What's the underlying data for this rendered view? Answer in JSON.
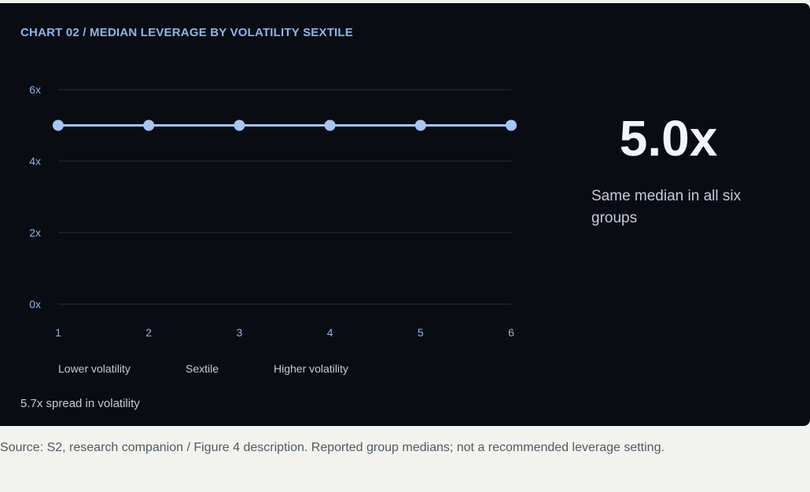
{
  "panel": {
    "title": "CHART 02 / MEDIAN LEVERAGE BY VOLATILITY SEXTILE",
    "headline_value": "5.0x",
    "headline_caption": "Same median in all six groups",
    "x_note_low": "Lower volatility",
    "x_note_mid": "Sextile",
    "x_note_high": "Higher volatility",
    "spread_note": "5.7x spread in volatility"
  },
  "source": "Source: S2, research companion / Figure 4 description. Reported group medians; not a recommended leverage setting.",
  "colors": {
    "background": "#090c13",
    "series": "#a6c6f3",
    "grid": "#25313d",
    "axis_text": "#8fb4ea",
    "page": "#f2f3ee"
  },
  "chart_data": {
    "type": "line",
    "title": "CHART 02 / MEDIAN LEVERAGE BY VOLATILITY SEXTILE",
    "xlabel": "Sextile",
    "ylabel": "",
    "x": [
      1,
      2,
      3,
      4,
      5,
      6
    ],
    "x_tick_labels": [
      "1",
      "2",
      "3",
      "4",
      "5",
      "6"
    ],
    "ylim": [
      0,
      6
    ],
    "y_ticks": [
      0,
      2,
      4,
      6
    ],
    "y_tick_labels": [
      "0x",
      "2x",
      "4x",
      "6x"
    ],
    "grid": true,
    "series": [
      {
        "values": [
          5.0,
          5.0,
          5.0,
          5.0,
          5.0,
          5.0
        ]
      }
    ]
  }
}
